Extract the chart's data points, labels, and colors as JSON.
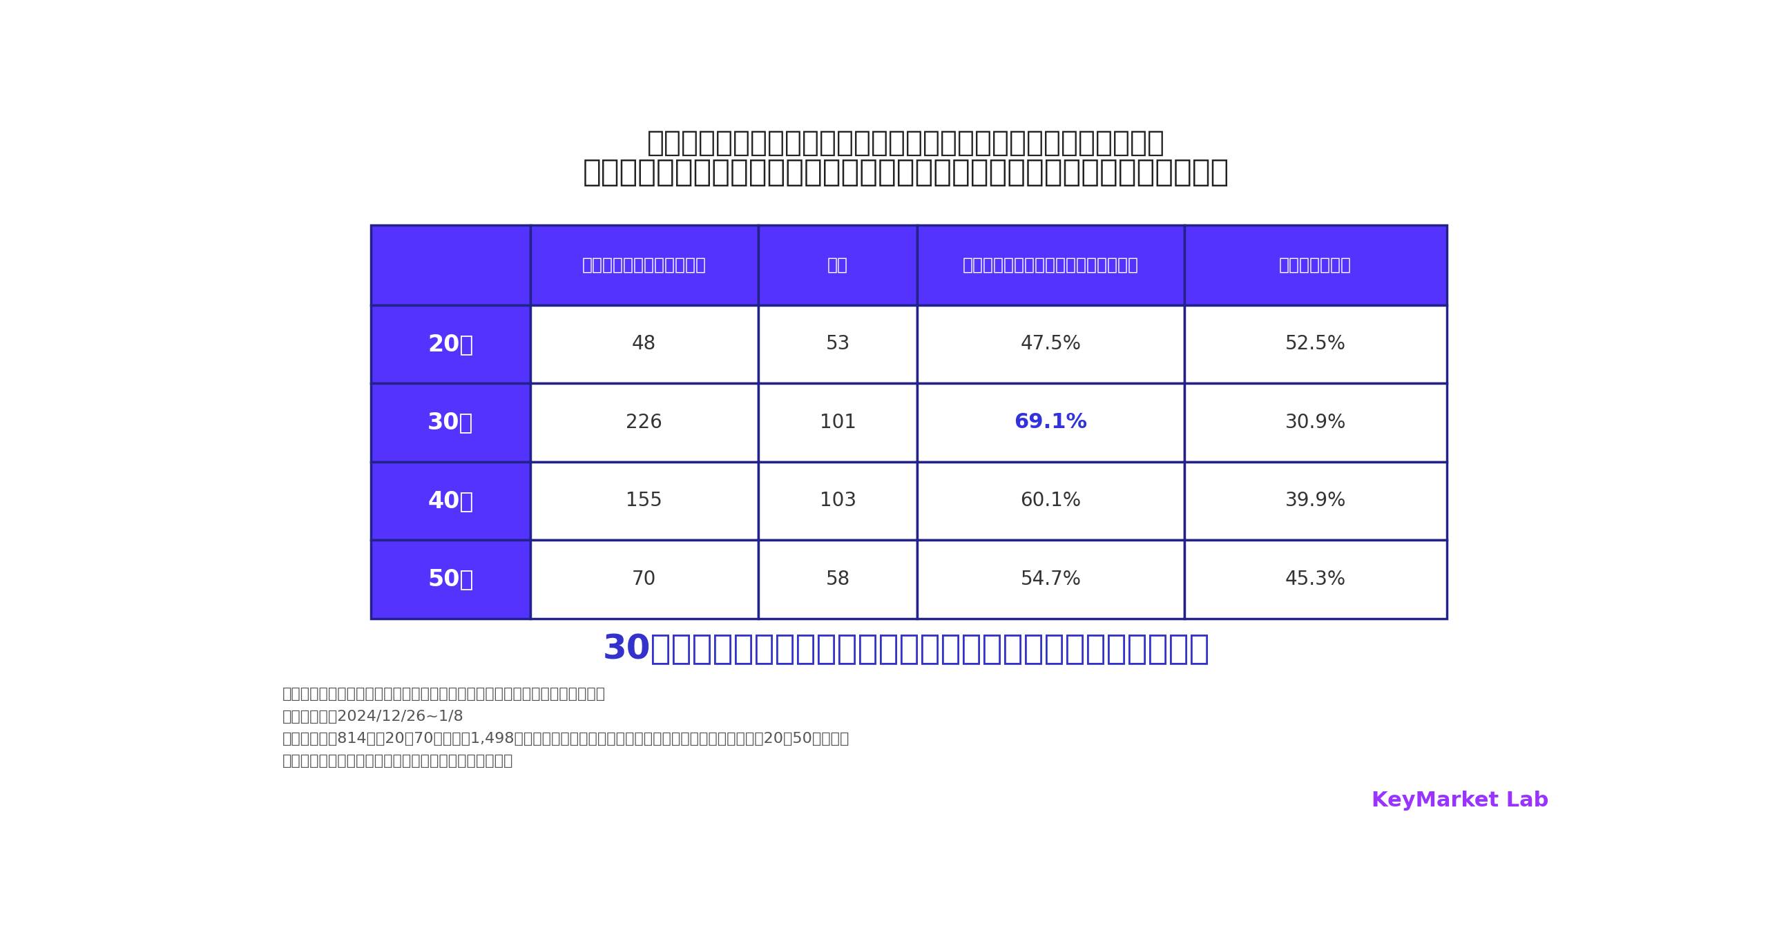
{
  "title_line1": "【アドブロックツールを「知っている」と回答した方のみに質問】",
  "title_line2": "アドブロックツールを認知し、実際に利用したことはありますか？（年代別）",
  "col_headers": [
    "ある（現在利用中も含む）",
    "ない",
    "「ある（現在利用中も含む）」の割合",
    "「ない」の割合"
  ],
  "row_labels": [
    "20代",
    "30代",
    "40代",
    "50代"
  ],
  "data": [
    [
      "48",
      "53",
      "47.5%",
      "52.5%"
    ],
    [
      "226",
      "101",
      "69.1%",
      "30.9%"
    ],
    [
      "155",
      "103",
      "60.1%",
      "39.9%"
    ],
    [
      "70",
      "58",
      "54.7%",
      "45.3%"
    ]
  ],
  "highlight_row": 1,
  "highlight_col": 2,
  "highlight_text_color": "#3333dd",
  "normal_text_color": "#333333",
  "header_bg": "#5533ff",
  "header_text_color": "#ffffff",
  "row_label_bg": "#5533ff",
  "row_label_text_color": "#ffffff",
  "cell_bg": "#ffffff",
  "table_border_color": "#222288",
  "highlight_note": "30代は特に「ある（現在利用中も含む）」の割合が高い傾向に",
  "highlight_note_color": "#3333cc",
  "footnote_line1": "【調査内容：アドブロックツールの認知や利用に関するアンケート調査結果】",
  "footnote_line2": "・調査期間：2024/12/26~1/8",
  "footnote_line3": "・調査対象：814名（20〜70代の男女1,498名のうち、アドブロックツールを「知っている」と回答した20〜50代のみ）",
  "footnote_line4": "・調査方法：インターネット調査（クラウドワークス）",
  "footnote_color": "#555555",
  "bg_color": "#ffffff",
  "logo_text": "KeyMarket Lab",
  "logo_color": "#9933ff"
}
